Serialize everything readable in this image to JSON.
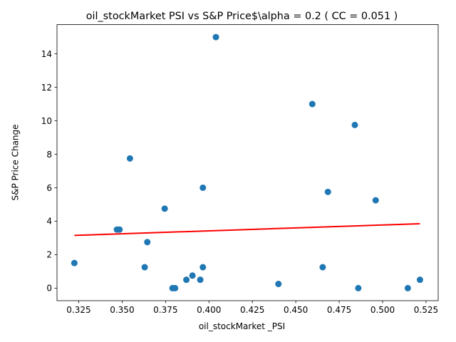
{
  "chart_data": {
    "type": "scatter",
    "title": "oil_stockMarket  PSI vs S&P Price$\\alpha = 0.2 ( CC = 0.051 )",
    "xlabel": "oil_stockMarket _PSI",
    "ylabel": "S&P Price Change",
    "xlim": [
      0.3125,
      0.532
    ],
    "ylim": [
      -0.75,
      15.75
    ],
    "xticks": [
      "0.325",
      "0.350",
      "0.375",
      "0.400",
      "0.425",
      "0.450",
      "0.475",
      "0.500",
      "0.525"
    ],
    "yticks": [
      "0",
      "2",
      "4",
      "6",
      "8",
      "10",
      "12",
      "14"
    ],
    "grid": false,
    "point_color": "#1f77b4",
    "fit_line_color": "#ff0000",
    "points": [
      {
        "x": 0.3225,
        "y": 1.5
      },
      {
        "x": 0.347,
        "y": 3.5
      },
      {
        "x": 0.3485,
        "y": 3.5
      },
      {
        "x": 0.3545,
        "y": 7.75
      },
      {
        "x": 0.363,
        "y": 1.25
      },
      {
        "x": 0.3645,
        "y": 2.75
      },
      {
        "x": 0.3745,
        "y": 4.75
      },
      {
        "x": 0.379,
        "y": 0.0
      },
      {
        "x": 0.3805,
        "y": 0.0
      },
      {
        "x": 0.387,
        "y": 0.5
      },
      {
        "x": 0.3905,
        "y": 0.75
      },
      {
        "x": 0.395,
        "y": 0.5
      },
      {
        "x": 0.3965,
        "y": 6.0
      },
      {
        "x": 0.3965,
        "y": 1.25
      },
      {
        "x": 0.404,
        "y": 15.0
      },
      {
        "x": 0.44,
        "y": 0.25
      },
      {
        "x": 0.4595,
        "y": 11.0
      },
      {
        "x": 0.4655,
        "y": 1.25
      },
      {
        "x": 0.4685,
        "y": 5.75
      },
      {
        "x": 0.484,
        "y": 9.75
      },
      {
        "x": 0.486,
        "y": 0.0
      },
      {
        "x": 0.496,
        "y": 5.25
      },
      {
        "x": 0.5145,
        "y": 0.0
      },
      {
        "x": 0.5215,
        "y": 0.5
      }
    ],
    "fit_line": {
      "x": [
        0.3225,
        0.5215
      ],
      "y": [
        3.15,
        3.85
      ]
    }
  }
}
